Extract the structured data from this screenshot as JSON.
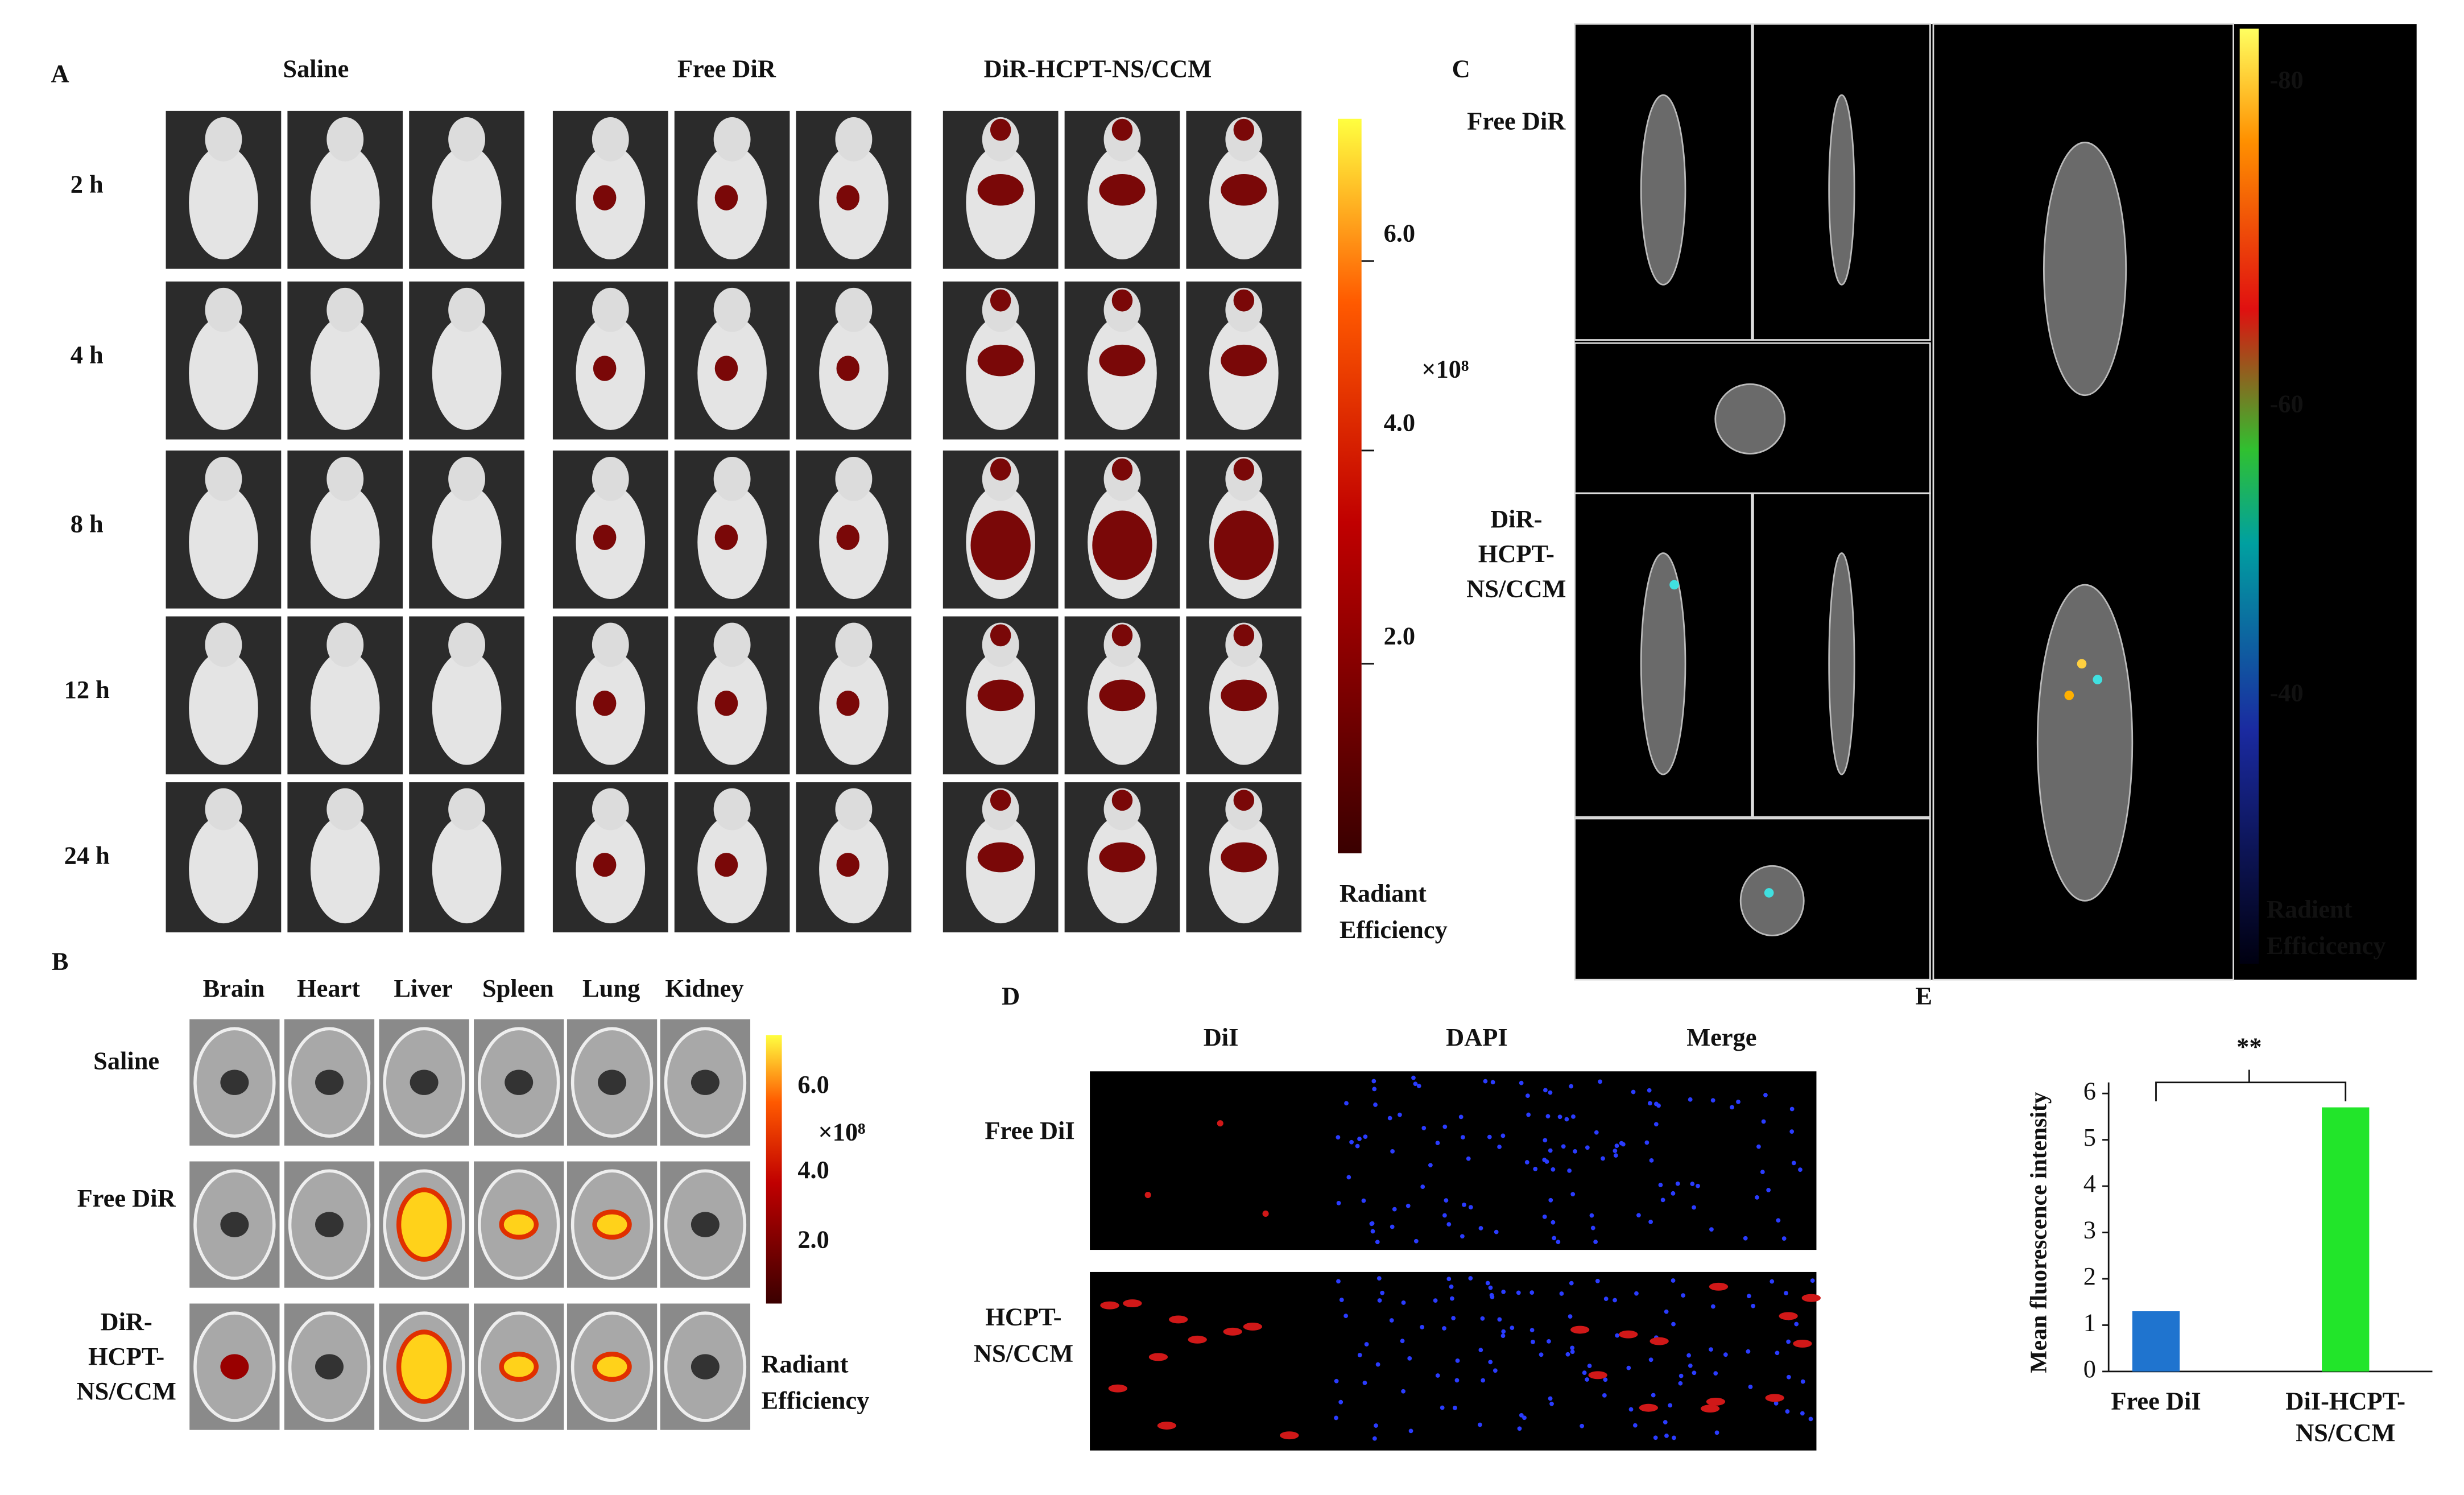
{
  "panel_a": {
    "label": "A",
    "groups": [
      "Saline",
      "Free DiR",
      "DiR-HCPT-NS/CCM"
    ],
    "times": [
      "2 h",
      "4 h",
      "8 h",
      "12 h",
      "24 h"
    ],
    "colorbar_ticks": [
      "6.0",
      "4.0",
      "2.0"
    ],
    "multiplier": "×10⁸",
    "colorbar_label": [
      "Radiant",
      "Efficiency"
    ]
  },
  "panel_b": {
    "label": "B",
    "organs": [
      "Brain",
      "Heart",
      "Liver",
      "Spleen",
      "Lung",
      "Kidney"
    ],
    "rows": [
      [
        "Saline"
      ],
      [
        "Free DiR"
      ],
      [
        "DiR-",
        "HCPT-",
        "NS/CCM"
      ]
    ],
    "colorbar_ticks": [
      "6.0",
      "4.0",
      "2.0"
    ],
    "multiplier": "×10⁸",
    "colorbar_label": [
      "Radiant",
      "Efficiency"
    ]
  },
  "panel_c": {
    "label": "C",
    "rows": [
      [
        "Free DiR"
      ],
      [
        "DiR-",
        "HCPT-",
        "NS/CCM"
      ]
    ],
    "colorbar_ticks": [
      "-80",
      "-60",
      "-40"
    ],
    "colorbar_label": [
      "Radient",
      "Efficicency"
    ]
  },
  "panel_d": {
    "label": "D",
    "columns": [
      "DiI",
      "DAPI",
      "Merge"
    ],
    "rows": [
      [
        "Free DiI"
      ],
      [
        "HCPT-",
        "NS/CCM"
      ]
    ]
  },
  "chart_data": {
    "type": "bar",
    "panel_label": "E",
    "ylabel": "Mean fluorescence intensity",
    "categories": [
      "Free DiI",
      "DiI-HCPT-NS/CCM"
    ],
    "values": [
      1.3,
      5.7
    ],
    "colors": [
      "#1f74cf",
      "#22e52a"
    ],
    "ylim": [
      0,
      6
    ],
    "yticks": [
      0,
      1,
      2,
      3,
      4,
      5,
      6
    ],
    "significance": "**"
  }
}
